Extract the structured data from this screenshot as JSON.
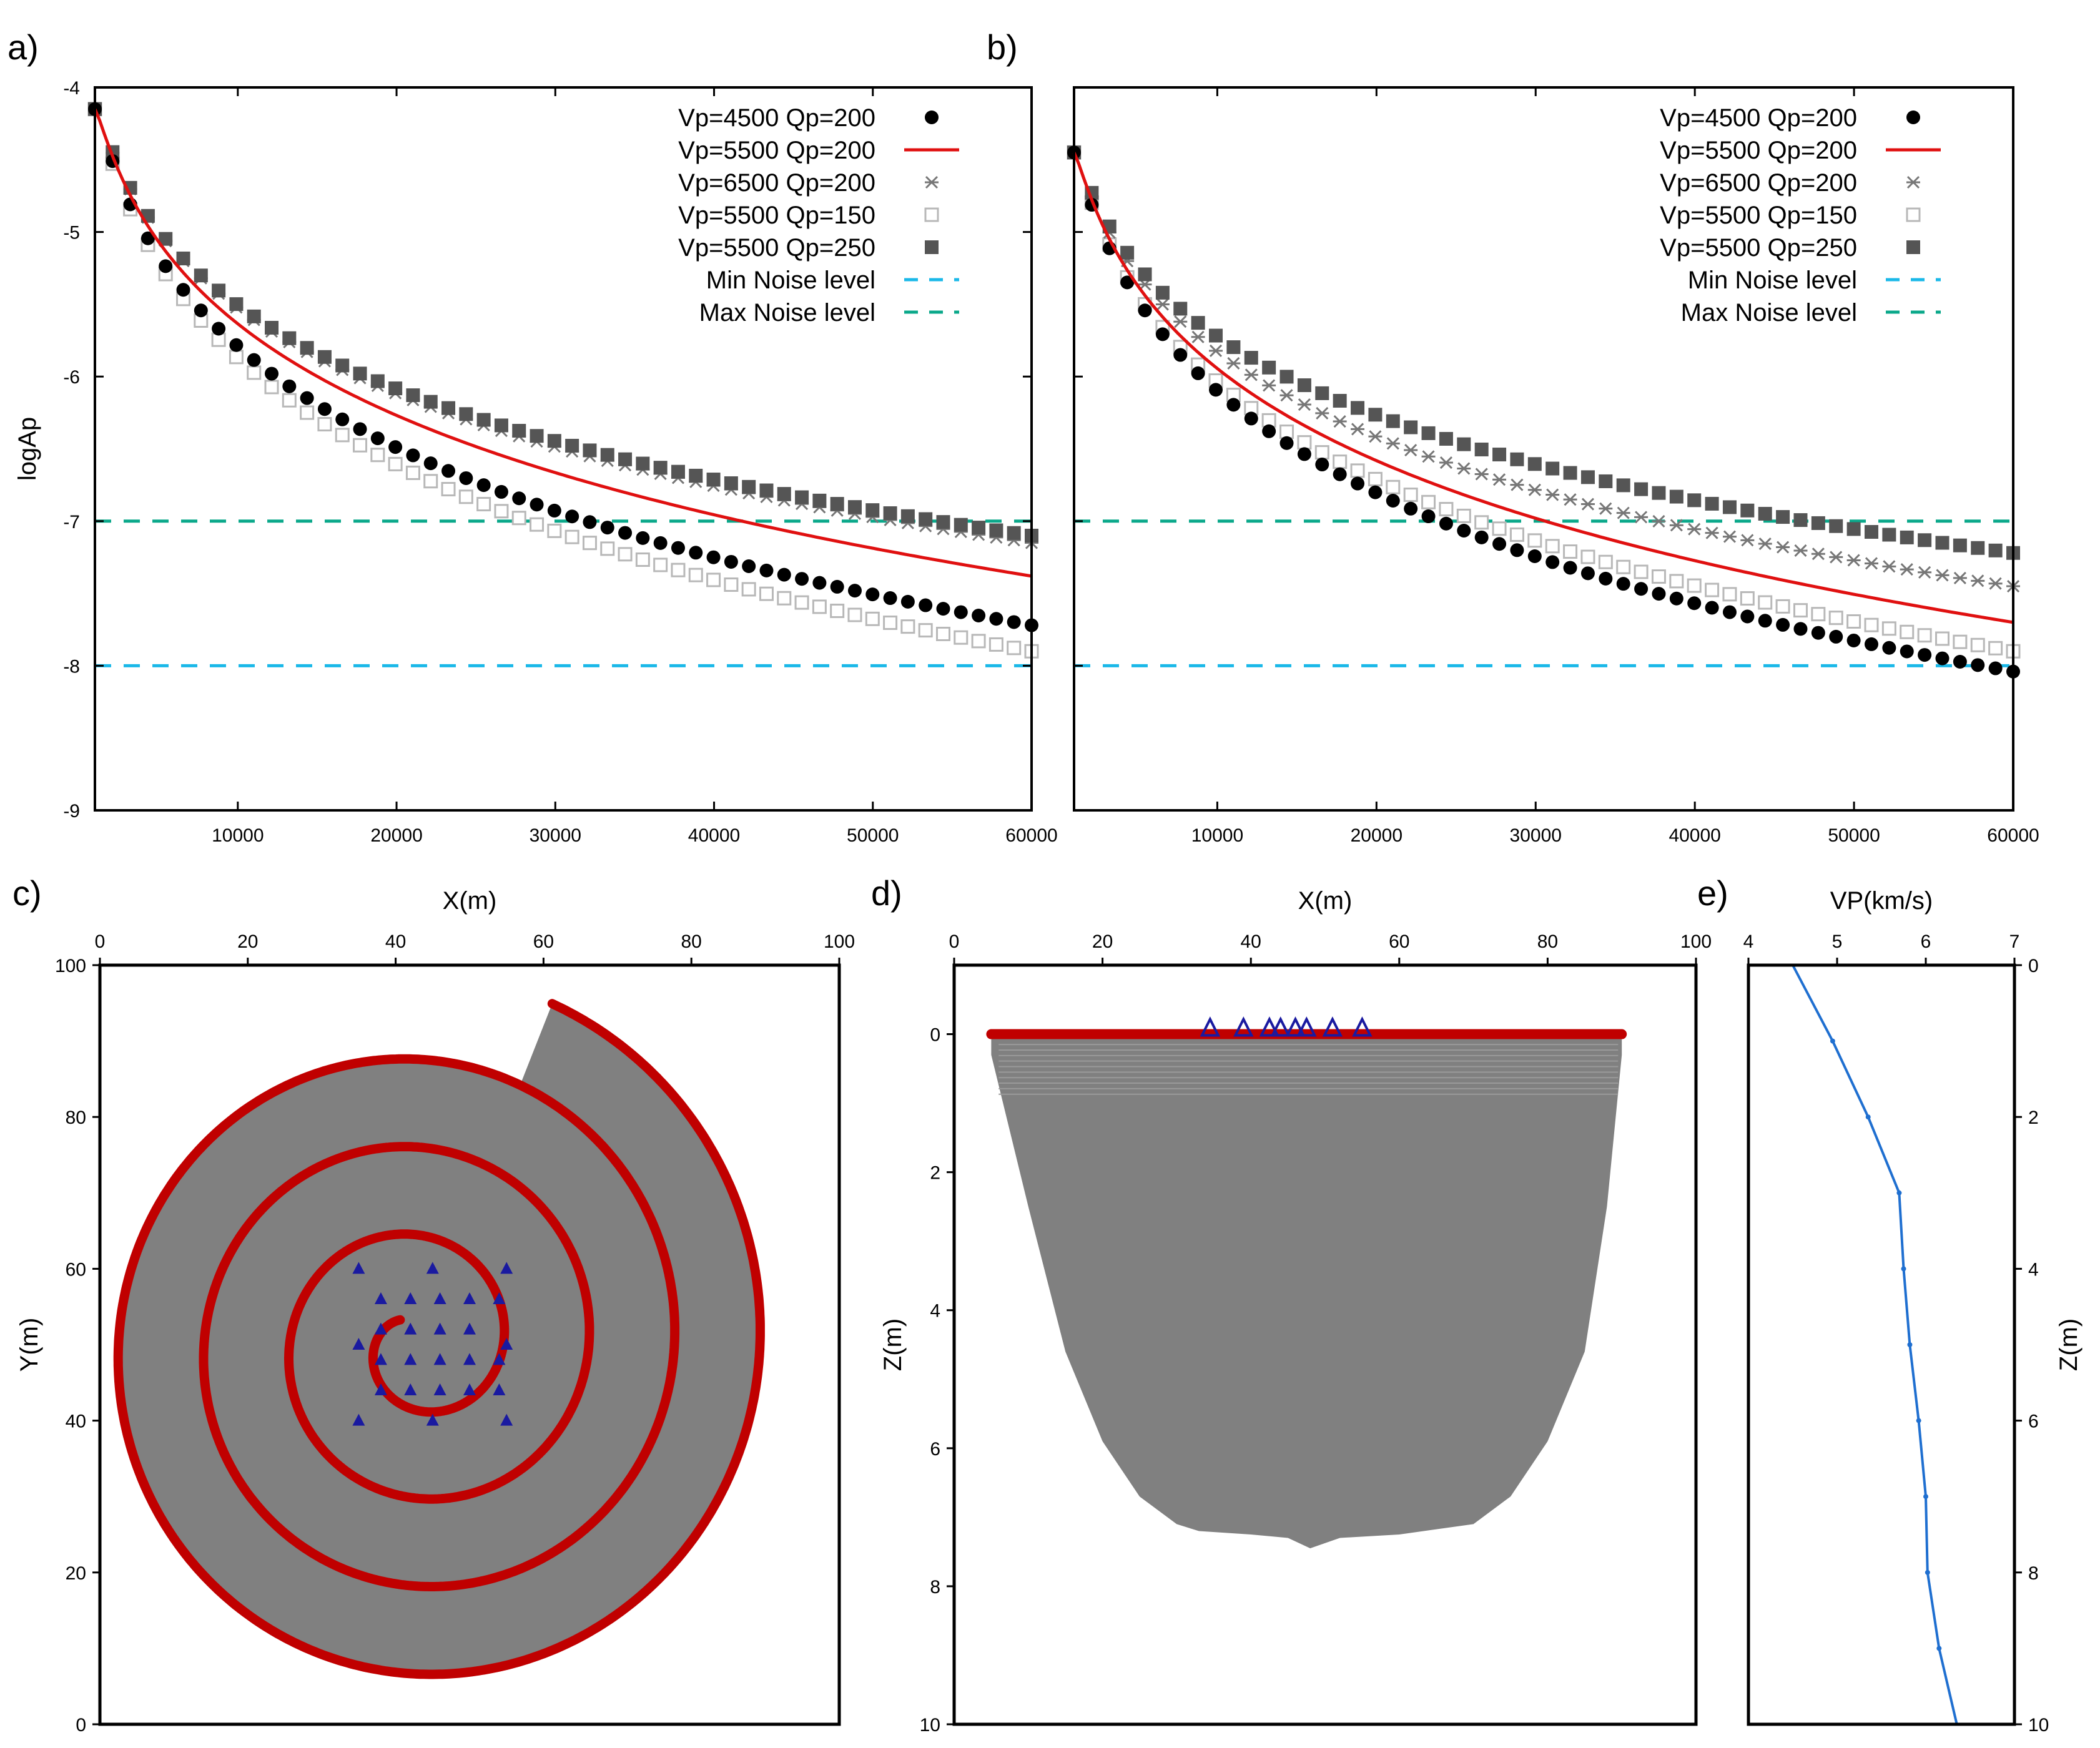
{
  "colors": {
    "red": "#e01010",
    "black": "#000000",
    "dark_gray": "#555555",
    "light_gray": "#b8b8b8",
    "min_noise": "#1ab8e8",
    "max_noise": "#0aa88a",
    "fill_gray": "#808080",
    "deep_red": "#c00000",
    "station_blue": "#1a1aa0",
    "profile_blue": "#1f6fd0"
  },
  "chart_data": [
    {
      "panel_label": "a)",
      "type": "line",
      "ylabel": "logAp",
      "xlim": [
        1000,
        60000
      ],
      "ylim": [
        -9,
        -4
      ],
      "x_ticks": [
        10000,
        20000,
        30000,
        40000,
        50000,
        60000
      ],
      "y_ticks": [
        -9,
        -8,
        -7,
        -6,
        -5,
        -4
      ],
      "legend_location": "top-right",
      "legend": [
        "Vp=4500 Qp=200",
        "Vp=5500 Qp=200",
        "Vp=6500 Qp=200",
        "Vp=5500 Qp=150",
        "Vp=5500 Qp=250",
        "Min Noise level",
        "Max Noise level"
      ],
      "series": [
        {
          "name": "Vp=4500 Qp=200",
          "marker": "filled-circle",
          "x0": 1000,
          "x1": 60000,
          "y0": -4.15,
          "y1": -7.72
        },
        {
          "name": "Vp=5500 Qp=200",
          "marker": "line",
          "x0": 1000,
          "x1": 60000,
          "y0": -4.15,
          "y1": -7.38
        },
        {
          "name": "Vp=6500 Qp=200",
          "marker": "star",
          "x0": 1000,
          "x1": 60000,
          "y0": -4.15,
          "y1": -7.15
        },
        {
          "name": "Vp=5500 Qp=150",
          "marker": "open-square",
          "x0": 1000,
          "x1": 60000,
          "y0": -4.15,
          "y1": -7.9
        },
        {
          "name": "Vp=5500 Qp=250",
          "marker": "filled-square",
          "x0": 1000,
          "x1": 60000,
          "y0": -4.15,
          "y1": -7.1
        }
      ],
      "noise": {
        "min": -8,
        "max": -7
      }
    },
    {
      "panel_label": "b)",
      "type": "line",
      "xlim": [
        1000,
        60000
      ],
      "ylim": [
        -9,
        -4
      ],
      "x_ticks": [
        10000,
        20000,
        30000,
        40000,
        50000,
        60000
      ],
      "legend_location": "top-right",
      "legend": [
        "Vp=4500 Qp=200",
        "Vp=5500 Qp=200",
        "Vp=6500 Qp=200",
        "Vp=5500 Qp=150",
        "Vp=5500 Qp=250",
        "Min Noise level",
        "Max Noise level"
      ],
      "series": [
        {
          "name": "Vp=4500 Qp=200",
          "marker": "filled-circle",
          "x0": 1000,
          "x1": 60000,
          "y0": -4.45,
          "y1": -8.04
        },
        {
          "name": "Vp=5500 Qp=200",
          "marker": "line",
          "x0": 1000,
          "x1": 60000,
          "y0": -4.45,
          "y1": -7.7
        },
        {
          "name": "Vp=6500 Qp=200",
          "marker": "star",
          "x0": 1000,
          "x1": 60000,
          "y0": -4.45,
          "y1": -7.45
        },
        {
          "name": "Vp=5500 Qp=150",
          "marker": "open-square",
          "x0": 1000,
          "x1": 60000,
          "y0": -4.45,
          "y1": -7.9
        },
        {
          "name": "Vp=5500 Qp=250",
          "marker": "filled-square",
          "x0": 1000,
          "x1": 60000,
          "y0": -4.45,
          "y1": -7.22
        }
      ],
      "noise": {
        "min": -8,
        "max": -7
      }
    },
    {
      "panel_label": "c)",
      "type": "scatter",
      "xlabel": "X(m)",
      "ylabel": "Y(m)",
      "xlim": [
        0,
        100
      ],
      "ylim": [
        0,
        100
      ],
      "x_ticks": [
        0,
        20,
        40,
        60,
        80,
        100
      ],
      "y_ticks": [
        0,
        20,
        40,
        60,
        80,
        100
      ],
      "spiral_center": [
        43,
        50
      ],
      "spiral_outer_end": [
        61,
        95
      ],
      "stations": [
        [
          35,
          60
        ],
        [
          45,
          60
        ],
        [
          55,
          60
        ],
        [
          38,
          56
        ],
        [
          42,
          56
        ],
        [
          46,
          56
        ],
        [
          50,
          56
        ],
        [
          54,
          56
        ],
        [
          38,
          52
        ],
        [
          42,
          52
        ],
        [
          46,
          52
        ],
        [
          50,
          52
        ],
        [
          35,
          50
        ],
        [
          55,
          50
        ],
        [
          38,
          48
        ],
        [
          42,
          48
        ],
        [
          46,
          48
        ],
        [
          50,
          48
        ],
        [
          54,
          48
        ],
        [
          38,
          44
        ],
        [
          42,
          44
        ],
        [
          46,
          44
        ],
        [
          50,
          44
        ],
        [
          54,
          44
        ],
        [
          35,
          40
        ],
        [
          45,
          40
        ],
        [
          55,
          40
        ]
      ]
    },
    {
      "panel_label": "d)",
      "type": "scatter",
      "xlabel": "X(m)",
      "ylabel": "Z(m)",
      "xlim": [
        0,
        100
      ],
      "ylim": [
        -1,
        10
      ],
      "x_ticks": [
        0,
        20,
        40,
        60,
        80,
        100
      ],
      "y_ticks": [
        0,
        2,
        4,
        6,
        8,
        10
      ],
      "source_line": {
        "x0": 5,
        "x1": 90,
        "z": 0
      },
      "coverage_bottom": [
        [
          5,
          0.3
        ],
        [
          10,
          2.5
        ],
        [
          15,
          4.6
        ],
        [
          20,
          5.9
        ],
        [
          25,
          6.7
        ],
        [
          30,
          7.1
        ],
        [
          33,
          7.2
        ],
        [
          40,
          7.25
        ],
        [
          45,
          7.3
        ],
        [
          48,
          7.45
        ],
        [
          52,
          7.3
        ],
        [
          60,
          7.25
        ],
        [
          70,
          7.1
        ],
        [
          75,
          6.7
        ],
        [
          80,
          5.9
        ],
        [
          85,
          4.6
        ],
        [
          88,
          2.5
        ],
        [
          90,
          0.3
        ]
      ],
      "stations_x": [
        34.5,
        39,
        42.5,
        44,
        46,
        47.5,
        51,
        55
      ]
    },
    {
      "panel_label": "e)",
      "type": "line",
      "xlabel": "VP(km/s)",
      "ylabel": "Z(m)",
      "xlim": [
        4,
        7
      ],
      "ylim": [
        0,
        10
      ],
      "x_ticks": [
        4,
        5,
        6,
        7
      ],
      "y_ticks": [
        0,
        2,
        4,
        6,
        8,
        10
      ],
      "profile": [
        [
          4.5,
          0
        ],
        [
          4.95,
          1
        ],
        [
          5.35,
          2
        ],
        [
          5.7,
          3
        ],
        [
          5.75,
          4
        ],
        [
          5.82,
          5
        ],
        [
          5.92,
          6
        ],
        [
          6.0,
          7
        ],
        [
          6.02,
          8
        ],
        [
          6.15,
          9
        ],
        [
          6.35,
          10
        ]
      ]
    }
  ]
}
